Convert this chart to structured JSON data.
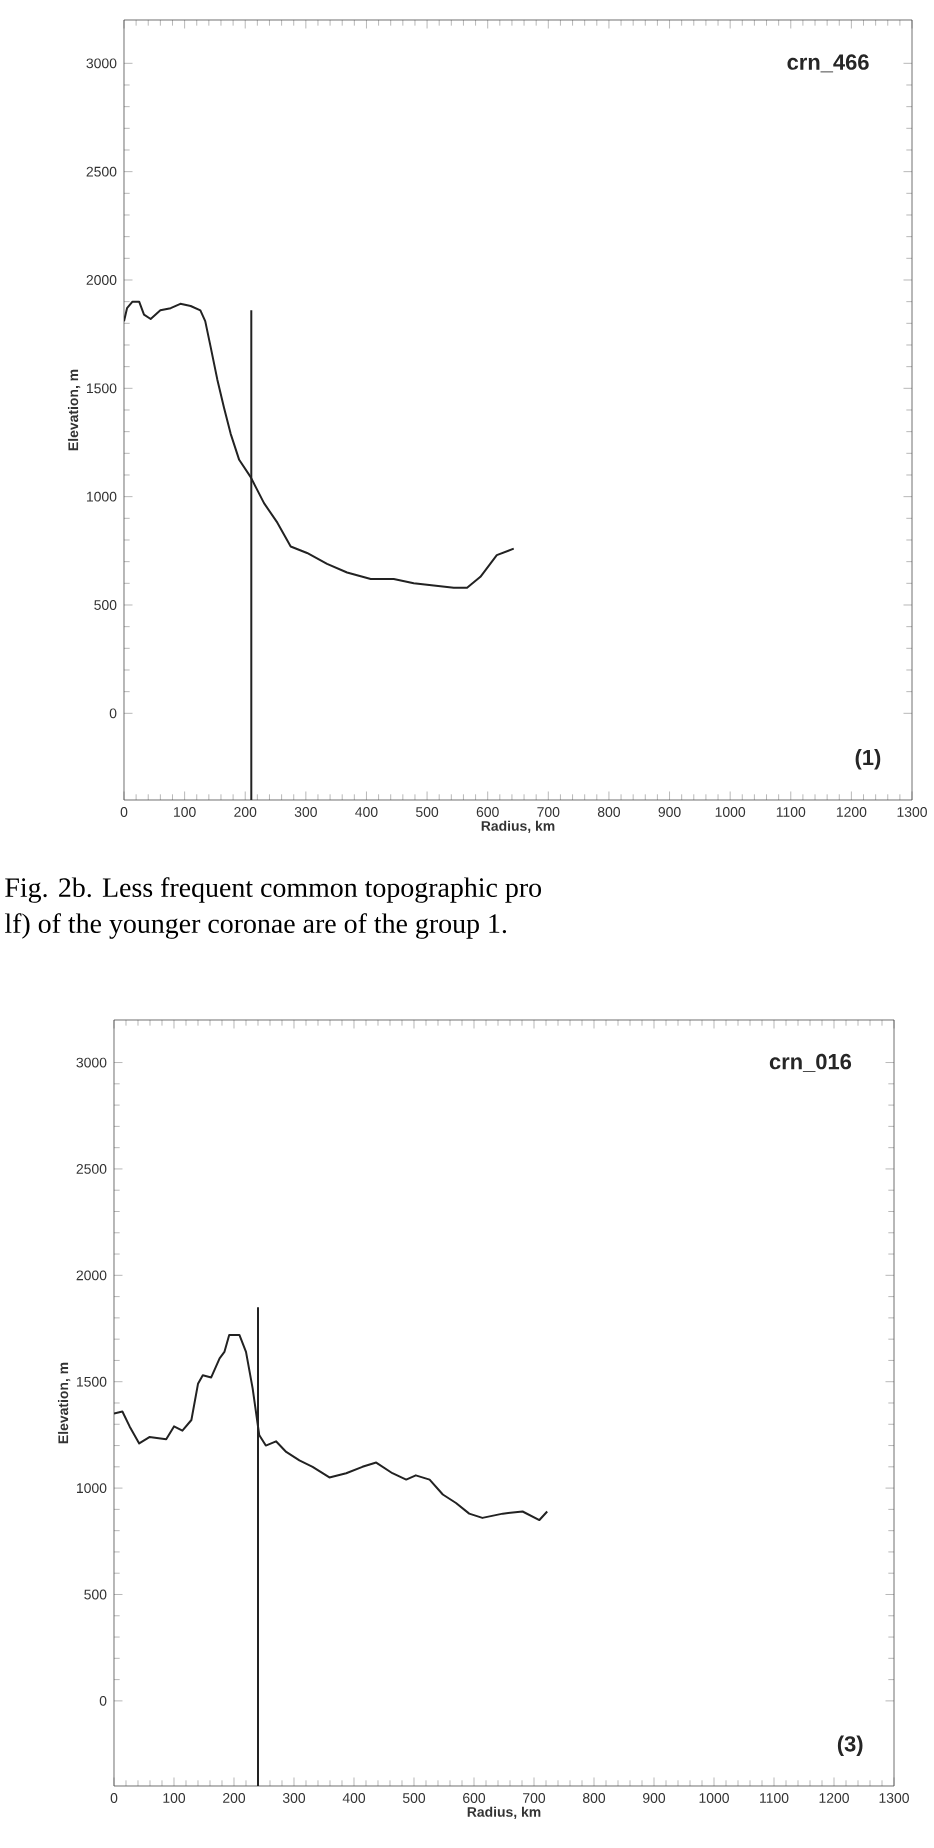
{
  "chart_data": [
    {
      "type": "line",
      "xlabel": "Radius, km",
      "ylabel": "Elevation, m",
      "xlim": [
        0,
        1300
      ],
      "ylim": [
        -400,
        3200
      ],
      "xticks": [
        0,
        100,
        200,
        300,
        400,
        500,
        600,
        700,
        800,
        900,
        1000,
        1100,
        1200,
        1300
      ],
      "yticks": [
        0,
        500,
        1000,
        1500,
        2000,
        2500,
        3000
      ],
      "annotations": [
        "crn_466",
        "(1)",
        "Fig. 2b. Less frequent common topographic pro",
        "lf) of the younger coronae are of the group 1."
      ],
      "series": [
        {
          "color": "#222222",
          "x": [
            0,
            5,
            14,
            25,
            33,
            44,
            60,
            77,
            93,
            110,
            126,
            134,
            143,
            154,
            165,
            176,
            190,
            209,
            231,
            253,
            275,
            302,
            335,
            368,
            407,
            445,
            478,
            511,
            544,
            566,
            588,
            615,
            643
          ],
          "values": [
            1810,
            1870,
            1900,
            1900,
            1840,
            1820,
            1860,
            1870,
            1890,
            1880,
            1860,
            1810,
            1690,
            1540,
            1410,
            1290,
            1170,
            1090,
            970,
            880,
            770,
            740,
            690,
            650,
            620,
            620,
            600,
            590,
            580,
            580,
            630,
            730,
            760
          ]
        },
        {
          "color": "#222222",
          "x": [
            210,
            210
          ],
          "values": [
            -400,
            1860
          ]
        }
      ]
    },
    {
      "type": "line",
      "xlabel": "Radius, km",
      "ylabel": "Elevation, m",
      "xlim": [
        0,
        1300
      ],
      "ylim": [
        -400,
        3200
      ],
      "xticks": [
        0,
        100,
        200,
        300,
        400,
        500,
        600,
        700,
        800,
        900,
        1000,
        1100,
        1200,
        1300
      ],
      "yticks": [
        0,
        500,
        1000,
        1500,
        2000,
        2500,
        3000
      ],
      "annotations": [
        "crn_016",
        "(3)"
      ],
      "series": [
        {
          "color": "#222222",
          "x": [
            0,
            14,
            26,
            42,
            59,
            87,
            100,
            114,
            129,
            140,
            148,
            162,
            176,
            184,
            192,
            209,
            220,
            231,
            242,
            253,
            270,
            287,
            309,
            331,
            359,
            387,
            414,
            437,
            464,
            487,
            503,
            526,
            548,
            570,
            592,
            614,
            648,
            681,
            709,
            722
          ],
          "values": [
            1350,
            1360,
            1290,
            1210,
            1240,
            1230,
            1290,
            1270,
            1320,
            1490,
            1530,
            1520,
            1610,
            1640,
            1720,
            1720,
            1640,
            1470,
            1250,
            1200,
            1220,
            1170,
            1130,
            1100,
            1050,
            1070,
            1100,
            1120,
            1070,
            1040,
            1060,
            1040,
            970,
            930,
            880,
            860,
            880,
            890,
            850,
            890
          ]
        },
        {
          "color": "#222222",
          "x": [
            240,
            240
          ],
          "values": [
            -400,
            1850
          ]
        }
      ]
    }
  ]
}
